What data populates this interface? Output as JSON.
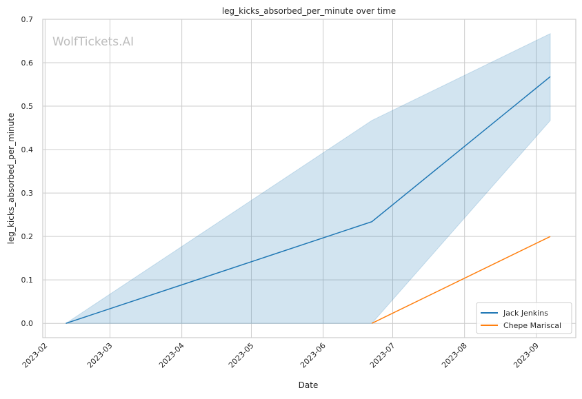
{
  "chart_data": {
    "type": "line",
    "title": "leg_kicks_absorbed_per_minute over time",
    "xlabel": "Date",
    "ylabel": "leg_kicks_absorbed_per_minute",
    "watermark": "WolfTickets.AI",
    "xlim": [
      "2023-01-31",
      "2023-09-18"
    ],
    "ylim": [
      -0.033,
      0.7
    ],
    "x_ticks": [
      "2023-02",
      "2023-03",
      "2023-04",
      "2023-05",
      "2023-06",
      "2023-07",
      "2023-08",
      "2023-09"
    ],
    "y_ticks": [
      "0.0",
      "0.1",
      "0.2",
      "0.3",
      "0.4",
      "0.5",
      "0.6",
      "0.7"
    ],
    "grid": true,
    "legend_position": "bottom-right",
    "series": [
      {
        "name": "Jack Jenkins",
        "color": "#1f77b4",
        "x": [
          "2023-02-10",
          "2023-06-22",
          "2023-09-07"
        ],
        "y": [
          0.0,
          0.234,
          0.568
        ],
        "ci_lower": [
          0.0,
          0.0,
          0.467
        ],
        "ci_upper": [
          0.0,
          0.467,
          0.667
        ]
      },
      {
        "name": "Chepe Mariscal",
        "color": "#ff7f0e",
        "x": [
          "2023-06-22",
          "2023-09-07"
        ],
        "y": [
          0.0,
          0.2
        ]
      }
    ]
  }
}
